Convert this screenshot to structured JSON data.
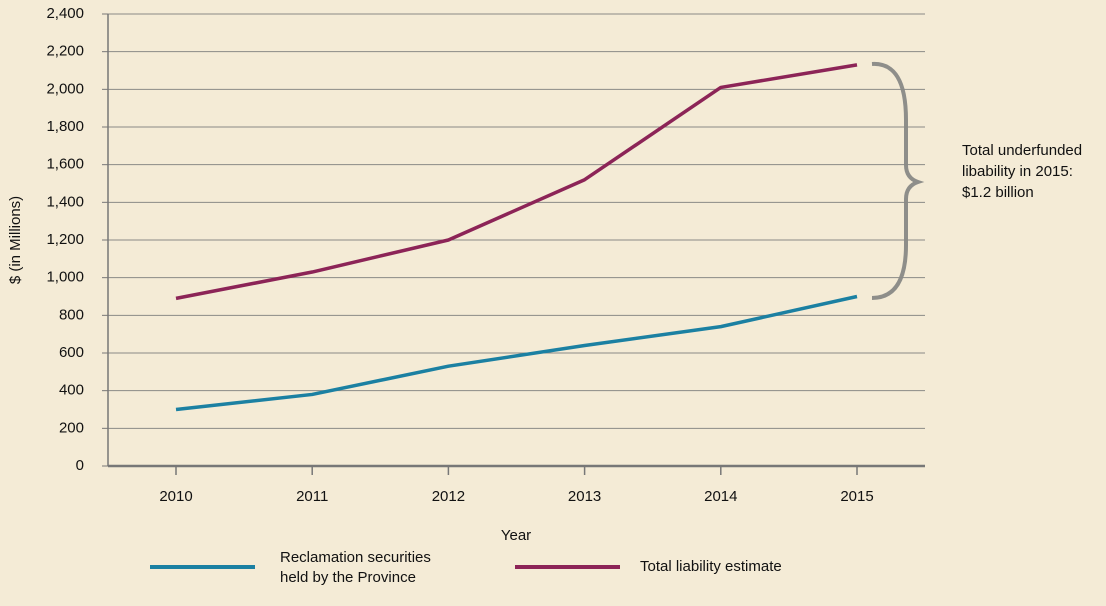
{
  "chart_data": {
    "type": "line",
    "x_label": "Year",
    "y_label": "$ (in Millions)",
    "categories": [
      "2010",
      "2011",
      "2012",
      "2013",
      "2014",
      "2015"
    ],
    "series": [
      {
        "name": "Reclamation securities held by the Province",
        "color": "#1b80a2",
        "values": [
          300,
          380,
          530,
          640,
          740,
          900
        ]
      },
      {
        "name": "Total liability estimate",
        "color": "#8c2457",
        "values": [
          890,
          1030,
          1200,
          1520,
          2010,
          2130
        ]
      }
    ],
    "ylim": [
      0,
      2400
    ],
    "yticks": [
      0,
      200,
      400,
      600,
      800,
      {
        "value": 1000,
        "label": "1,000"
      },
      {
        "value": 1200,
        "label": "1,200"
      },
      {
        "value": 1400,
        "label": "1,400"
      },
      {
        "value": 1600,
        "label": "1,600"
      },
      {
        "value": 1800,
        "label": "1,800"
      },
      {
        "value": 2000,
        "label": "2,000"
      },
      {
        "value": 2200,
        "label": "2,200"
      },
      {
        "value": 2400,
        "label": "2,400"
      }
    ],
    "grid": true,
    "annotation": "Total underfunded libability in 2015: $1.2 billion"
  }
}
